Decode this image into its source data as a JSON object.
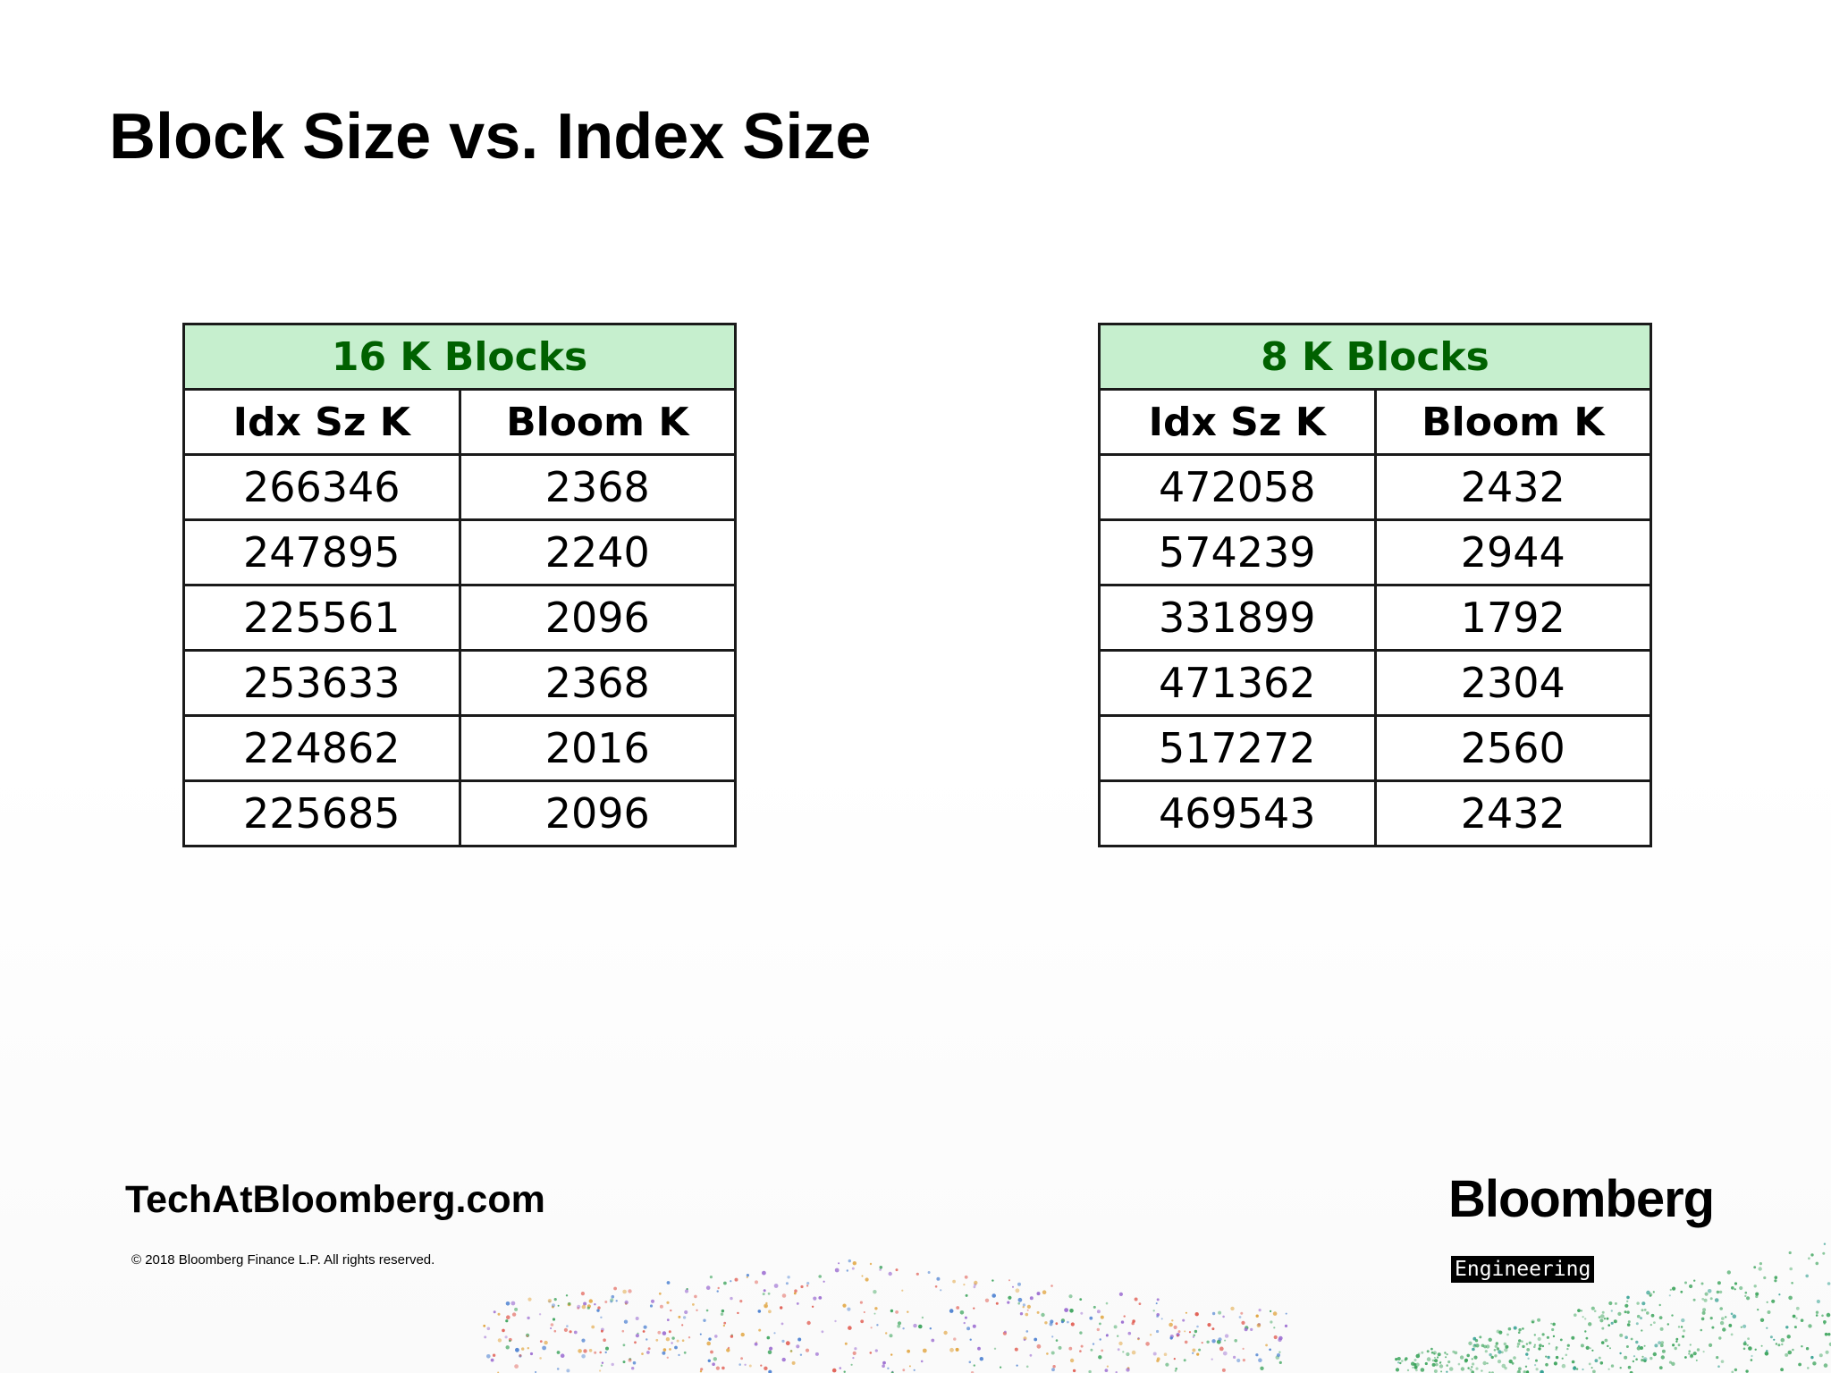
{
  "title": "Block Size vs. Index Size",
  "tables": [
    {
      "caption": "16 K Blocks",
      "columns": [
        "Idx Sz K",
        "Bloom K"
      ],
      "rows": [
        [
          "266346",
          "2368"
        ],
        [
          "247895",
          "2240"
        ],
        [
          "225561",
          "2096"
        ],
        [
          "253633",
          "2368"
        ],
        [
          "224862",
          "2016"
        ],
        [
          "225685",
          "2096"
        ]
      ]
    },
    {
      "caption": "8 K Blocks",
      "columns": [
        "Idx Sz K",
        "Bloom K"
      ],
      "rows": [
        [
          "472058",
          "2432"
        ],
        [
          "574239",
          "2944"
        ],
        [
          "331899",
          "1792"
        ],
        [
          "471362",
          "2304"
        ],
        [
          "517272",
          "2560"
        ],
        [
          "469543",
          "2432"
        ]
      ]
    }
  ],
  "footer": {
    "site": "TechAtBloomberg.com",
    "copyright": "© 2018 Bloomberg Finance L.P. All rights reserved.",
    "brand": "Bloomberg",
    "badge": "Engineering"
  },
  "colors": {
    "caption_fill": "#c6efce",
    "caption_text": "#006100",
    "dot_palette": [
      "#e05a4f",
      "#4a7fd0",
      "#9a6ad0",
      "#3aa35a",
      "#e0a23a",
      "#2f9e8f"
    ]
  }
}
